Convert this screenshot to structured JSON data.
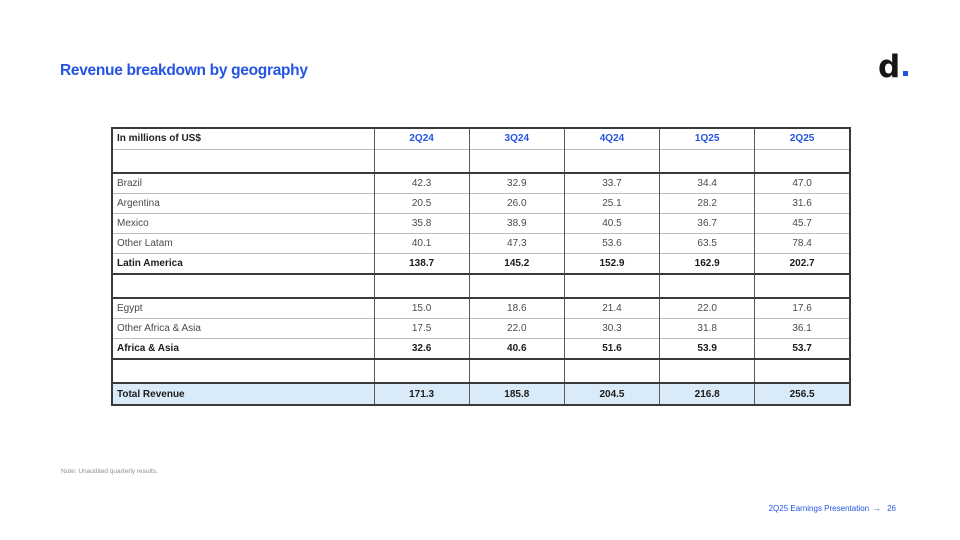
{
  "slide": {
    "title": "Revenue breakdown by geography",
    "note": "Note: Unaudited quarterly results.",
    "footer": {
      "label": "2Q25 Earnings Presentation",
      "arrow": "→",
      "page": "26"
    },
    "logo": {
      "letter": "d"
    }
  },
  "colors": {
    "accent_blue": "#2454e4",
    "total_row_bg": "#d9eaf8",
    "table_border_dark": "#3a3a3a",
    "table_border_light": "#bdbdbd"
  },
  "table": {
    "header": {
      "label": "In millions of US$",
      "columns": [
        "2Q24",
        "3Q24",
        "4Q24",
        "1Q25",
        "2Q25"
      ]
    },
    "rows": [
      {
        "label": "Brazil",
        "type": "data",
        "values": [
          "42.3",
          "32.9",
          "33.7",
          "34.4",
          "47.0"
        ]
      },
      {
        "label": "Argentina",
        "type": "data",
        "values": [
          "20.5",
          "26.0",
          "25.1",
          "28.2",
          "31.6"
        ]
      },
      {
        "label": "Mexico",
        "type": "data",
        "values": [
          "35.8",
          "38.9",
          "40.5",
          "36.7",
          "45.7"
        ]
      },
      {
        "label": "Other Latam",
        "type": "data",
        "values": [
          "40.1",
          "47.3",
          "53.6",
          "63.5",
          "78.4"
        ]
      },
      {
        "label": "Latin America",
        "type": "subtotal",
        "values": [
          "138.7",
          "145.2",
          "152.9",
          "162.9",
          "202.7"
        ]
      },
      {
        "label": "Egypt",
        "type": "data",
        "values": [
          "15.0",
          "18.6",
          "21.4",
          "22.0",
          "17.6"
        ]
      },
      {
        "label": "Other Africa & Asia",
        "type": "data",
        "values": [
          "17.5",
          "22.0",
          "30.3",
          "31.8",
          "36.1"
        ]
      },
      {
        "label": "Africa & Asia",
        "type": "subtotal",
        "values": [
          "32.6",
          "40.6",
          "51.6",
          "53.9",
          "53.7"
        ]
      },
      {
        "label": "Total Revenue",
        "type": "total",
        "values": [
          "171.3",
          "185.8",
          "204.5",
          "216.8",
          "256.5"
        ]
      }
    ]
  }
}
